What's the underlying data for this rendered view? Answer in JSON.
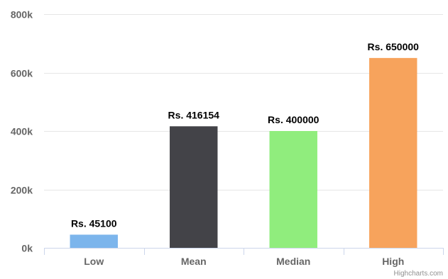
{
  "chart_data": {
    "type": "bar",
    "categories": [
      "Low",
      "Mean",
      "Median",
      "High"
    ],
    "values": [
      45100,
      416154,
      400000,
      650000
    ],
    "data_labels": [
      "Rs. 45100",
      "Rs. 416154",
      "Rs. 400000",
      "Rs. 650000"
    ],
    "colors": [
      "#7cb5ec",
      "#434348",
      "#90ed7d",
      "#f7a35c"
    ],
    "ylim": [
      0,
      800000
    ],
    "yticks": [
      0,
      200000,
      400000,
      600000,
      800000
    ],
    "ytick_labels": [
      "0k",
      "200k",
      "400k",
      "600k",
      "800k"
    ],
    "grid": true,
    "legend": "none"
  },
  "credits": "Highcharts.com"
}
